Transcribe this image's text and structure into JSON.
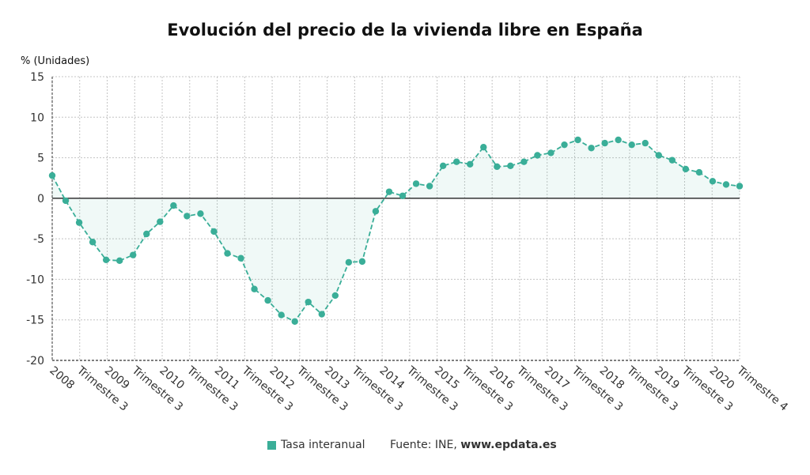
{
  "title": "Evolución del precio de la vivienda libre en España",
  "unit_label": "% (Unidades)",
  "legend": {
    "label": "Tasa interanual",
    "color": "#3aae98"
  },
  "source": {
    "prefix": "Fuente: INE, ",
    "site": "www.epdata.es"
  },
  "chart_data": {
    "type": "area",
    "title": "Evolución del precio de la vivienda libre en España",
    "ylabel": "% (Unidades)",
    "ylim": [
      -20,
      15
    ],
    "yticks": [
      15,
      10,
      5,
      0,
      -5,
      -10,
      -15,
      -20
    ],
    "grid": true,
    "legend_position": "bottom",
    "x_tick_labels": [
      "2008",
      "Trimestre 3",
      "2009",
      "Trimestre 3",
      "2010",
      "Trimestre 3",
      "2011",
      "Trimestre 3",
      "2012",
      "Trimestre 3",
      "2013",
      "Trimestre 3",
      "2014",
      "Trimestre 3",
      "2015",
      "Trimestre 3",
      "2016",
      "Trimestre 3",
      "2017",
      "Trimestre 3",
      "2018",
      "Trimestre 3",
      "2019",
      "Trimestre 3",
      "2020",
      "Trimestre 4"
    ],
    "series": [
      {
        "name": "Tasa interanual",
        "color": "#3aae98",
        "values": [
          2.8,
          -0.3,
          -3.0,
          -5.4,
          -7.6,
          -7.7,
          -7.0,
          -4.4,
          -2.9,
          -0.9,
          -2.2,
          -1.9,
          -4.1,
          -6.8,
          -7.4,
          -11.2,
          -12.6,
          -14.4,
          -15.2,
          -12.8,
          -14.3,
          -12.0,
          -7.9,
          -7.8,
          -1.6,
          0.8,
          0.3,
          1.8,
          1.5,
          4.0,
          4.5,
          4.2,
          6.3,
          3.9,
          4.0,
          4.5,
          5.3,
          5.6,
          6.6,
          7.2,
          6.2,
          6.8,
          7.2,
          6.6,
          6.8,
          5.3,
          4.7,
          3.6,
          3.2,
          2.1,
          1.7,
          1.5
        ]
      }
    ]
  }
}
